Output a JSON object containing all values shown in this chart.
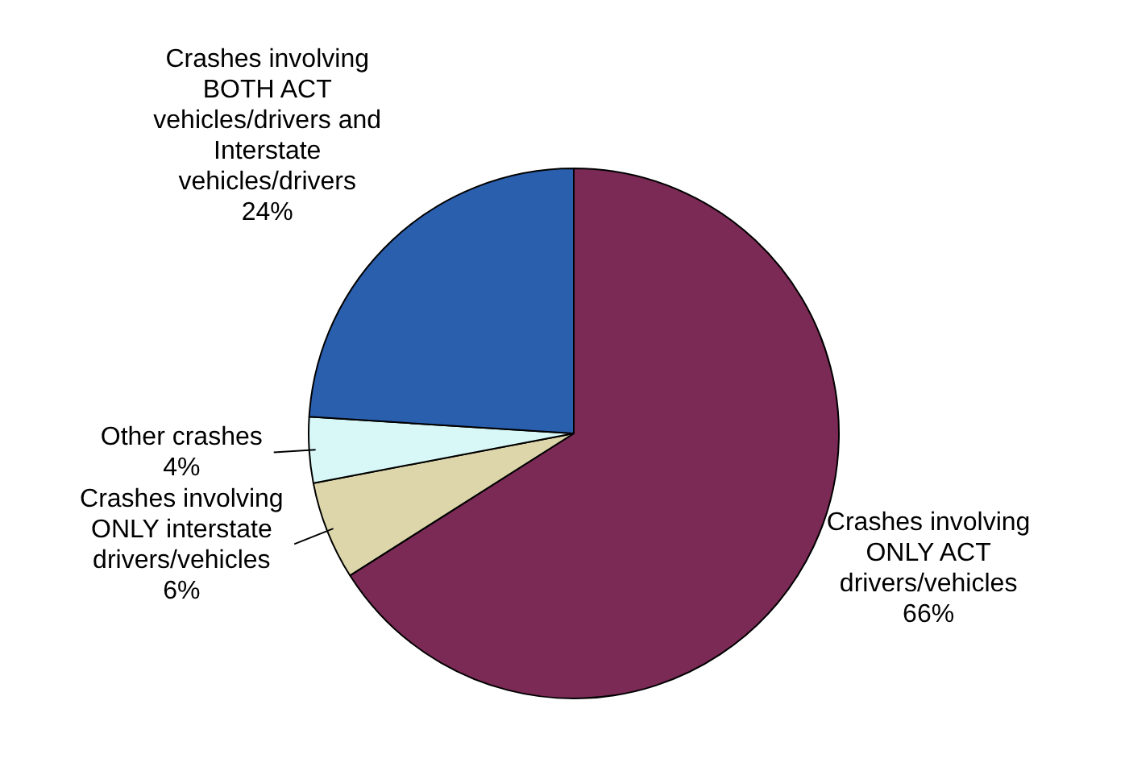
{
  "chart_data": {
    "type": "pie",
    "categories": [
      "Crashes involving ONLY ACT drivers/vehicles",
      "Crashes involving ONLY interstate drivers/vehicles",
      "Other crashes",
      "Crashes involving BOTH ACT vehicles/drivers and Interstate vehicles/drivers"
    ],
    "values": [
      66,
      6,
      4,
      24
    ],
    "value_labels": [
      "66%",
      "6%",
      "4%",
      "24%"
    ],
    "colors": [
      "#7a2a55",
      "#ddd6aa",
      "#d8f8f8",
      "#2a5fae"
    ],
    "legend": false
  }
}
